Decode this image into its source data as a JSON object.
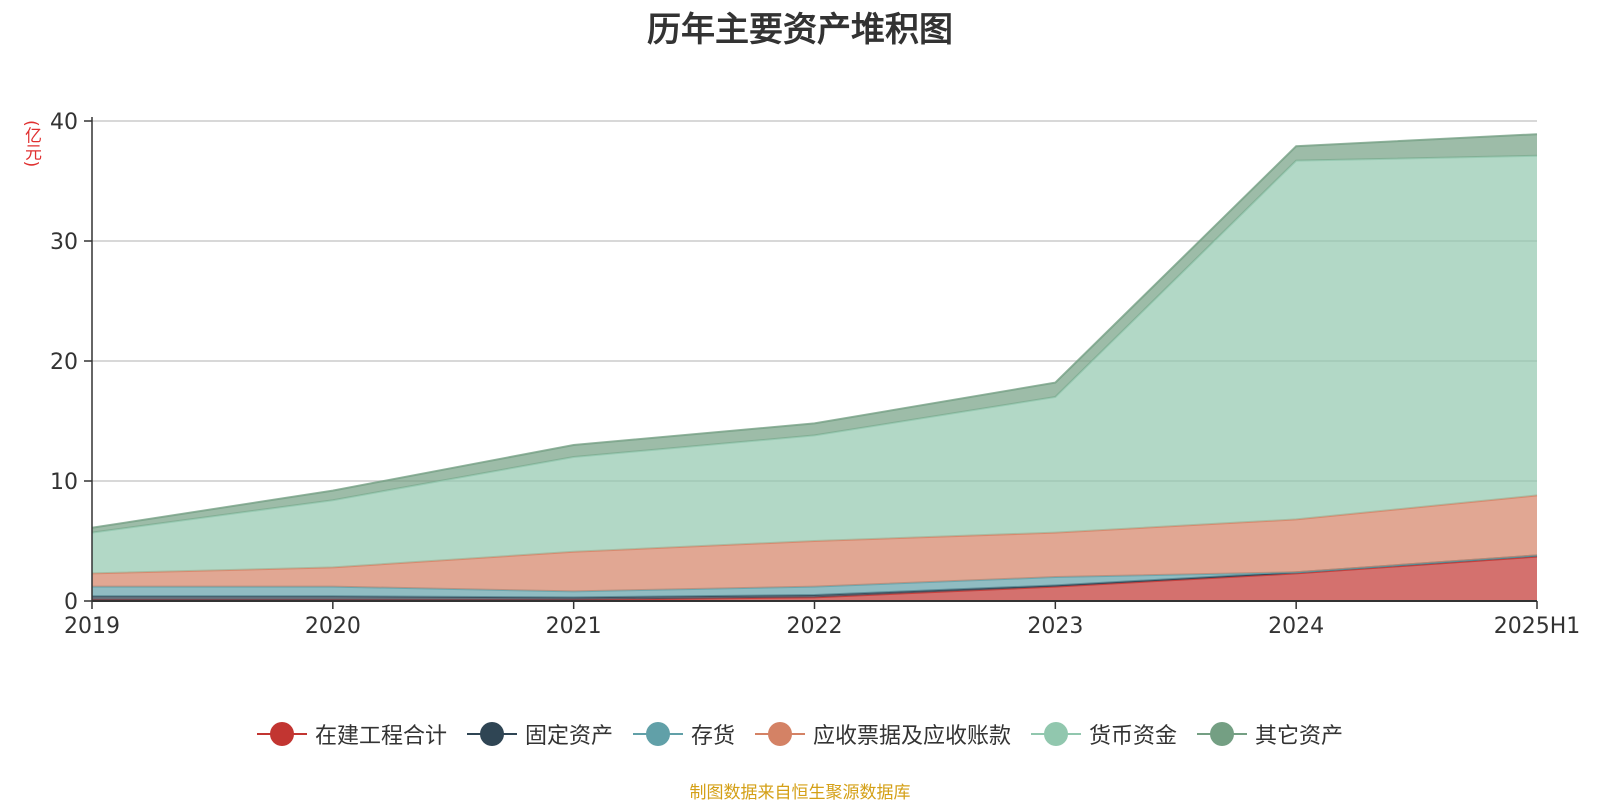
{
  "chart_data": {
    "type": "area",
    "stacked": true,
    "title": "历年主要资产堆积图",
    "ylabel": "(亿元)",
    "categories": [
      "2019",
      "2020",
      "2021",
      "2022",
      "2023",
      "2024",
      "2025H1"
    ],
    "ylim": [
      0,
      40
    ],
    "yticks": [
      "0",
      "10",
      "20",
      "30",
      "40"
    ],
    "grid": true,
    "legend_position": "bottom",
    "series": [
      {
        "name": "在建工程合计",
        "color": "#c23531",
        "values": [
          0.1,
          0.1,
          0.1,
          0.3,
          1.2,
          2.3,
          3.7
        ]
      },
      {
        "name": "固定资产",
        "color": "#2f4554",
        "values": [
          0.3,
          0.3,
          0.2,
          0.2,
          0.1,
          0.1,
          0.1
        ]
      },
      {
        "name": "存货",
        "color": "#61a0a8",
        "values": [
          0.8,
          0.8,
          0.5,
          0.7,
          0.7,
          0.0,
          0.0
        ]
      },
      {
        "name": "应收票据及应收账款",
        "color": "#d48265",
        "values": [
          1.1,
          1.6,
          3.3,
          3.8,
          3.7,
          4.4,
          5.0
        ]
      },
      {
        "name": "货币资金",
        "color": "#91c7ae",
        "values": [
          3.4,
          5.6,
          7.9,
          8.8,
          11.3,
          29.9,
          28.3
        ]
      },
      {
        "name": "其它资产",
        "color": "#749f83",
        "values": [
          0.4,
          0.8,
          1.0,
          1.0,
          1.2,
          1.2,
          1.8
        ]
      }
    ]
  },
  "source_note": "制图数据来自恒生聚源数据库"
}
